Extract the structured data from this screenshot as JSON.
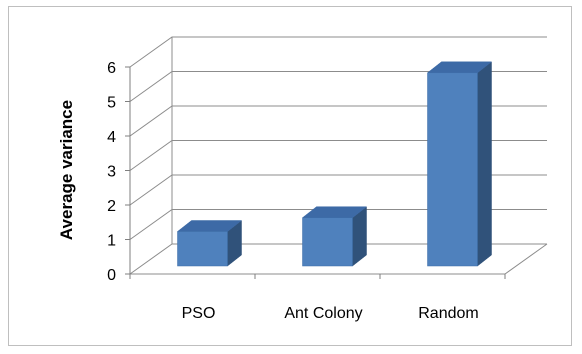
{
  "chart_data": {
    "type": "bar",
    "style": "3d-column",
    "title": "",
    "xlabel": "",
    "ylabel": "Average variance",
    "categories": [
      "PSO",
      "Ant Colony",
      "Random"
    ],
    "values": [
      1.0,
      1.4,
      5.6
    ],
    "ylim": [
      0,
      6
    ],
    "yticks": [
      0,
      1,
      2,
      3,
      4,
      5,
      6
    ],
    "grid": true,
    "legend": "none",
    "colors": {
      "bar_front": "#4f81bd",
      "bar_side": "#30527a",
      "bar_top": "#3d6aa6",
      "grid": "#8c8c8c",
      "axis": "#7f7f7f"
    }
  }
}
